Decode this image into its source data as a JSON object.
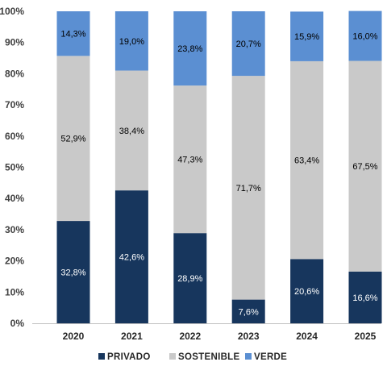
{
  "chart_data": {
    "type": "bar",
    "stacked": true,
    "categories": [
      "2020",
      "2021",
      "2022",
      "2023",
      "2024",
      "2025"
    ],
    "series": [
      {
        "name": "PRIVADO",
        "color": "#17365d",
        "label_color": "#ffffff",
        "values": [
          32.8,
          42.6,
          28.9,
          7.6,
          20.6,
          16.6
        ],
        "labels": [
          "32,8%",
          "42,6%",
          "28,9%",
          "7,6%",
          "20,6%",
          "16,6%"
        ]
      },
      {
        "name": "SOSTENIBLE",
        "color": "#c9c9c9",
        "label_color": "#000000",
        "values": [
          52.9,
          38.4,
          47.3,
          71.7,
          63.4,
          67.5
        ],
        "labels": [
          "52,9%",
          "38,4%",
          "47,3%",
          "71,7%",
          "63,4%",
          "67,5%"
        ]
      },
      {
        "name": "VERDE",
        "color": "#5b8fd2",
        "label_color": "#000000",
        "values": [
          14.3,
          19.0,
          23.8,
          20.7,
          15.9,
          16.0
        ],
        "labels": [
          "14,3%",
          "19,0%",
          "23,8%",
          "20,7%",
          "15,9%",
          "16,0%"
        ]
      }
    ],
    "ylim": [
      0,
      100
    ],
    "yticks": [
      "0%",
      "10%",
      "20%",
      "30%",
      "40%",
      "50%",
      "60%",
      "70%",
      "80%",
      "90%",
      "100%"
    ],
    "grid": false,
    "legend_position": "bottom"
  }
}
